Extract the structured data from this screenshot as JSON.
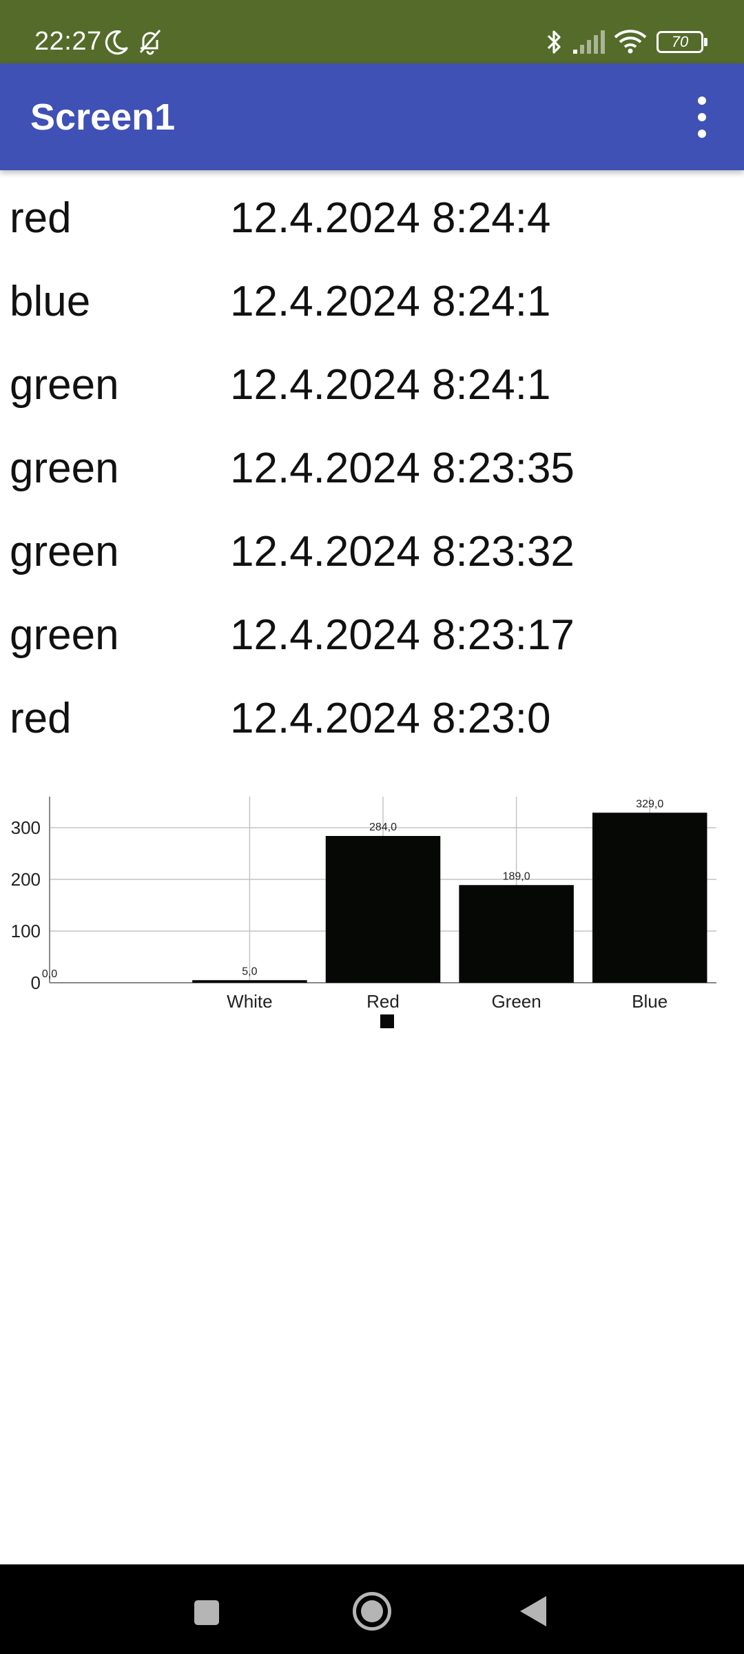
{
  "status_bar": {
    "time": "22:27",
    "battery_level": "70",
    "icons": [
      "moon-icon",
      "bell-off-icon",
      "bluetooth-icon",
      "signal-icon",
      "wifi-icon",
      "battery-icon"
    ]
  },
  "app_bar": {
    "title": "Screen1",
    "menu_icon": "more-vert-icon"
  },
  "list": [
    {
      "color": "red",
      "timestamp": "12.4.2024 8:24:4"
    },
    {
      "color": "blue",
      "timestamp": "12.4.2024 8:24:1"
    },
    {
      "color": "green",
      "timestamp": "12.4.2024 8:24:1"
    },
    {
      "color": "green",
      "timestamp": "12.4.2024 8:23:35"
    },
    {
      "color": "green",
      "timestamp": "12.4.2024 8:23:32"
    },
    {
      "color": "green",
      "timestamp": "12.4.2024 8:23:17"
    },
    {
      "color": "red",
      "timestamp": "12.4.2024 8:23:0"
    }
  ],
  "chart_data": {
    "type": "bar",
    "categories": [
      "",
      "White",
      "Red",
      "Green",
      "Blue"
    ],
    "values": [
      0,
      5,
      284,
      189,
      329
    ],
    "value_labels": [
      "0,0",
      "5,0",
      "284,0",
      "189,0",
      "329,0"
    ],
    "y_ticks": [
      0,
      100,
      200,
      300
    ],
    "ylim": [
      0,
      360
    ],
    "grid": true,
    "legend": "bottom-center",
    "bar_color": "#050805",
    "grid_color": "#c4c4c4"
  },
  "nav_bar": {
    "buttons": [
      "recents-icon",
      "home-icon",
      "back-icon"
    ]
  },
  "colors": {
    "status_bar": "#556b2a",
    "app_bar": "#3f51b5",
    "nav_bar": "#000000"
  }
}
